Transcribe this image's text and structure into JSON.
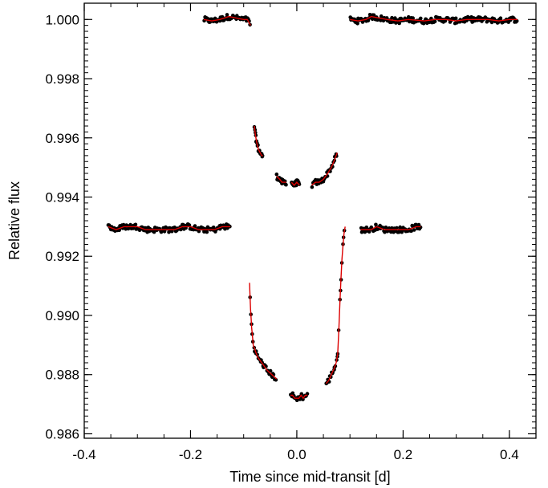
{
  "chart_data": {
    "type": "scatter",
    "title": "",
    "xlabel": "Time since mid-transit [d]",
    "ylabel": "Relative flux",
    "xlim": [
      -0.4,
      0.45
    ],
    "ylim": [
      0.98585,
      1.00055
    ],
    "xticks": [
      -0.4,
      -0.2,
      0.0,
      0.2,
      0.4
    ],
    "xtick_labels": [
      "-0.4",
      "-0.2",
      "0.0",
      "0.2",
      "0.4"
    ],
    "yticks": [
      0.986,
      0.988,
      0.99,
      0.992,
      0.994,
      0.996,
      0.998,
      1.0
    ],
    "ytick_labels": [
      "0.986",
      "0.988",
      "0.990",
      "0.992",
      "0.994",
      "0.996",
      "0.998",
      "1.000"
    ],
    "grid": false,
    "legend": "none",
    "colors": {
      "points": "#000000",
      "model": "#dd0000"
    },
    "series": [
      {
        "role": "upper-light-curve",
        "segments": [
          {
            "x": [
              -0.175,
              -0.16,
              -0.145,
              -0.128,
              -0.1,
              -0.093,
              -0.087
            ],
            "y": [
              1.0,
              0.99995,
              1.0,
              1.0001,
              1.0,
              1.0,
              0.9998
            ]
          },
          {
            "x": [
              -0.08,
              -0.078,
              -0.075,
              -0.072,
              -0.069,
              -0.066,
              -0.064
            ],
            "y": [
              0.9964,
              0.9961,
              0.9958,
              0.9956,
              0.9955,
              0.9954,
              0.9954
            ]
          },
          {
            "x": [
              -0.038,
              -0.032,
              -0.028,
              -0.024,
              -0.02
            ],
            "y": [
              0.9947,
              0.9946,
              0.9945,
              0.9945,
              0.9945
            ]
          },
          {
            "x": [
              -0.01,
              -0.005,
              0.0,
              0.005
            ],
            "y": [
              0.9945,
              0.9944,
              0.9945,
              0.9944
            ]
          },
          {
            "x": [
              0.028,
              0.035,
              0.042,
              0.05,
              0.058,
              0.065,
              0.072,
              0.076
            ],
            "y": [
              0.9944,
              0.9945,
              0.9945,
              0.9946,
              0.9948,
              0.995,
              0.9953,
              0.9955
            ]
          },
          {
            "x": [
              0.1,
              0.115,
              0.13,
              0.14,
              0.17,
              0.19,
              0.21,
              0.24,
              0.26,
              0.28,
              0.3,
              0.32,
              0.34,
              0.36,
              0.38,
              0.4,
              0.415
            ],
            "y": [
              1.0,
              0.99995,
              1.0,
              1.0001,
              1.0,
              0.99995,
              1.0,
              0.99995,
              1.0,
              1.0,
              0.99995,
              1.0,
              1.0,
              1.0,
              0.99995,
              1.0,
              1.0
            ]
          }
        ]
      },
      {
        "role": "lower-light-curve",
        "segments": [
          {
            "x": [
              -0.355,
              -0.34,
              -0.325,
              -0.3,
              -0.285,
              -0.265,
              -0.245,
              -0.23,
              -0.215,
              -0.2,
              -0.185,
              -0.17,
              -0.155,
              -0.14,
              -0.125
            ],
            "y": [
              0.993,
              0.9929,
              0.993,
              0.993,
              0.9929,
              0.9929,
              0.9929,
              0.9929,
              0.993,
              0.993,
              0.9929,
              0.9929,
              0.9929,
              0.993,
              0.993
            ]
          },
          {
            "x": [
              -0.089,
              -0.088,
              -0.087,
              -0.086,
              -0.085,
              -0.084,
              -0.083,
              -0.082,
              -0.081,
              -0.08,
              -0.079,
              -0.078,
              -0.077,
              -0.076,
              -0.075,
              -0.074,
              -0.072,
              -0.07,
              -0.068,
              -0.066,
              -0.064,
              -0.062,
              -0.06,
              -0.058,
              -0.056,
              -0.053,
              -0.05,
              -0.047,
              -0.044,
              -0.041,
              -0.038
            ],
            "y": [
              0.9911,
              0.9906,
              0.9902,
              0.9899,
              0.9896,
              0.9894,
              0.9892,
              0.989,
              0.98895,
              0.9889,
              0.98885,
              0.9888,
              0.98875,
              0.9887,
              0.98865,
              0.9886,
              0.98855,
              0.9885,
              0.98845,
              0.9884,
              0.98835,
              0.9883,
              0.98825,
              0.9882,
              0.98815,
              0.9881,
              0.98805,
              0.988,
              0.98795,
              0.9879,
              0.98785
            ]
          },
          {
            "x": [
              -0.012,
              -0.008,
              -0.004,
              0.0,
              0.004,
              0.008,
              0.012,
              0.016,
              0.02
            ],
            "y": [
              0.9873,
              0.9873,
              0.9872,
              0.9872,
              0.9872,
              0.9873,
              0.9872,
              0.9873,
              0.9873
            ]
          },
          {
            "x": [
              0.055,
              0.06,
              0.065,
              0.07,
              0.074,
              0.077,
              0.079,
              0.081,
              0.083,
              0.085,
              0.087,
              0.089,
              0.091
            ],
            "y": [
              0.9877,
              0.9878,
              0.988,
              0.9882,
              0.9884,
              0.9887,
              0.9895,
              0.9904,
              0.9912,
              0.9919,
              0.9924,
              0.9928,
              0.993
            ]
          },
          {
            "x": [
              0.12,
              0.13,
              0.14,
              0.15,
              0.165,
              0.175,
              0.2,
              0.21,
              0.225,
              0.233
            ],
            "y": [
              0.9929,
              0.9929,
              0.9929,
              0.993,
              0.9929,
              0.9929,
              0.9929,
              0.9929,
              0.993,
              0.993
            ]
          }
        ]
      }
    ]
  }
}
